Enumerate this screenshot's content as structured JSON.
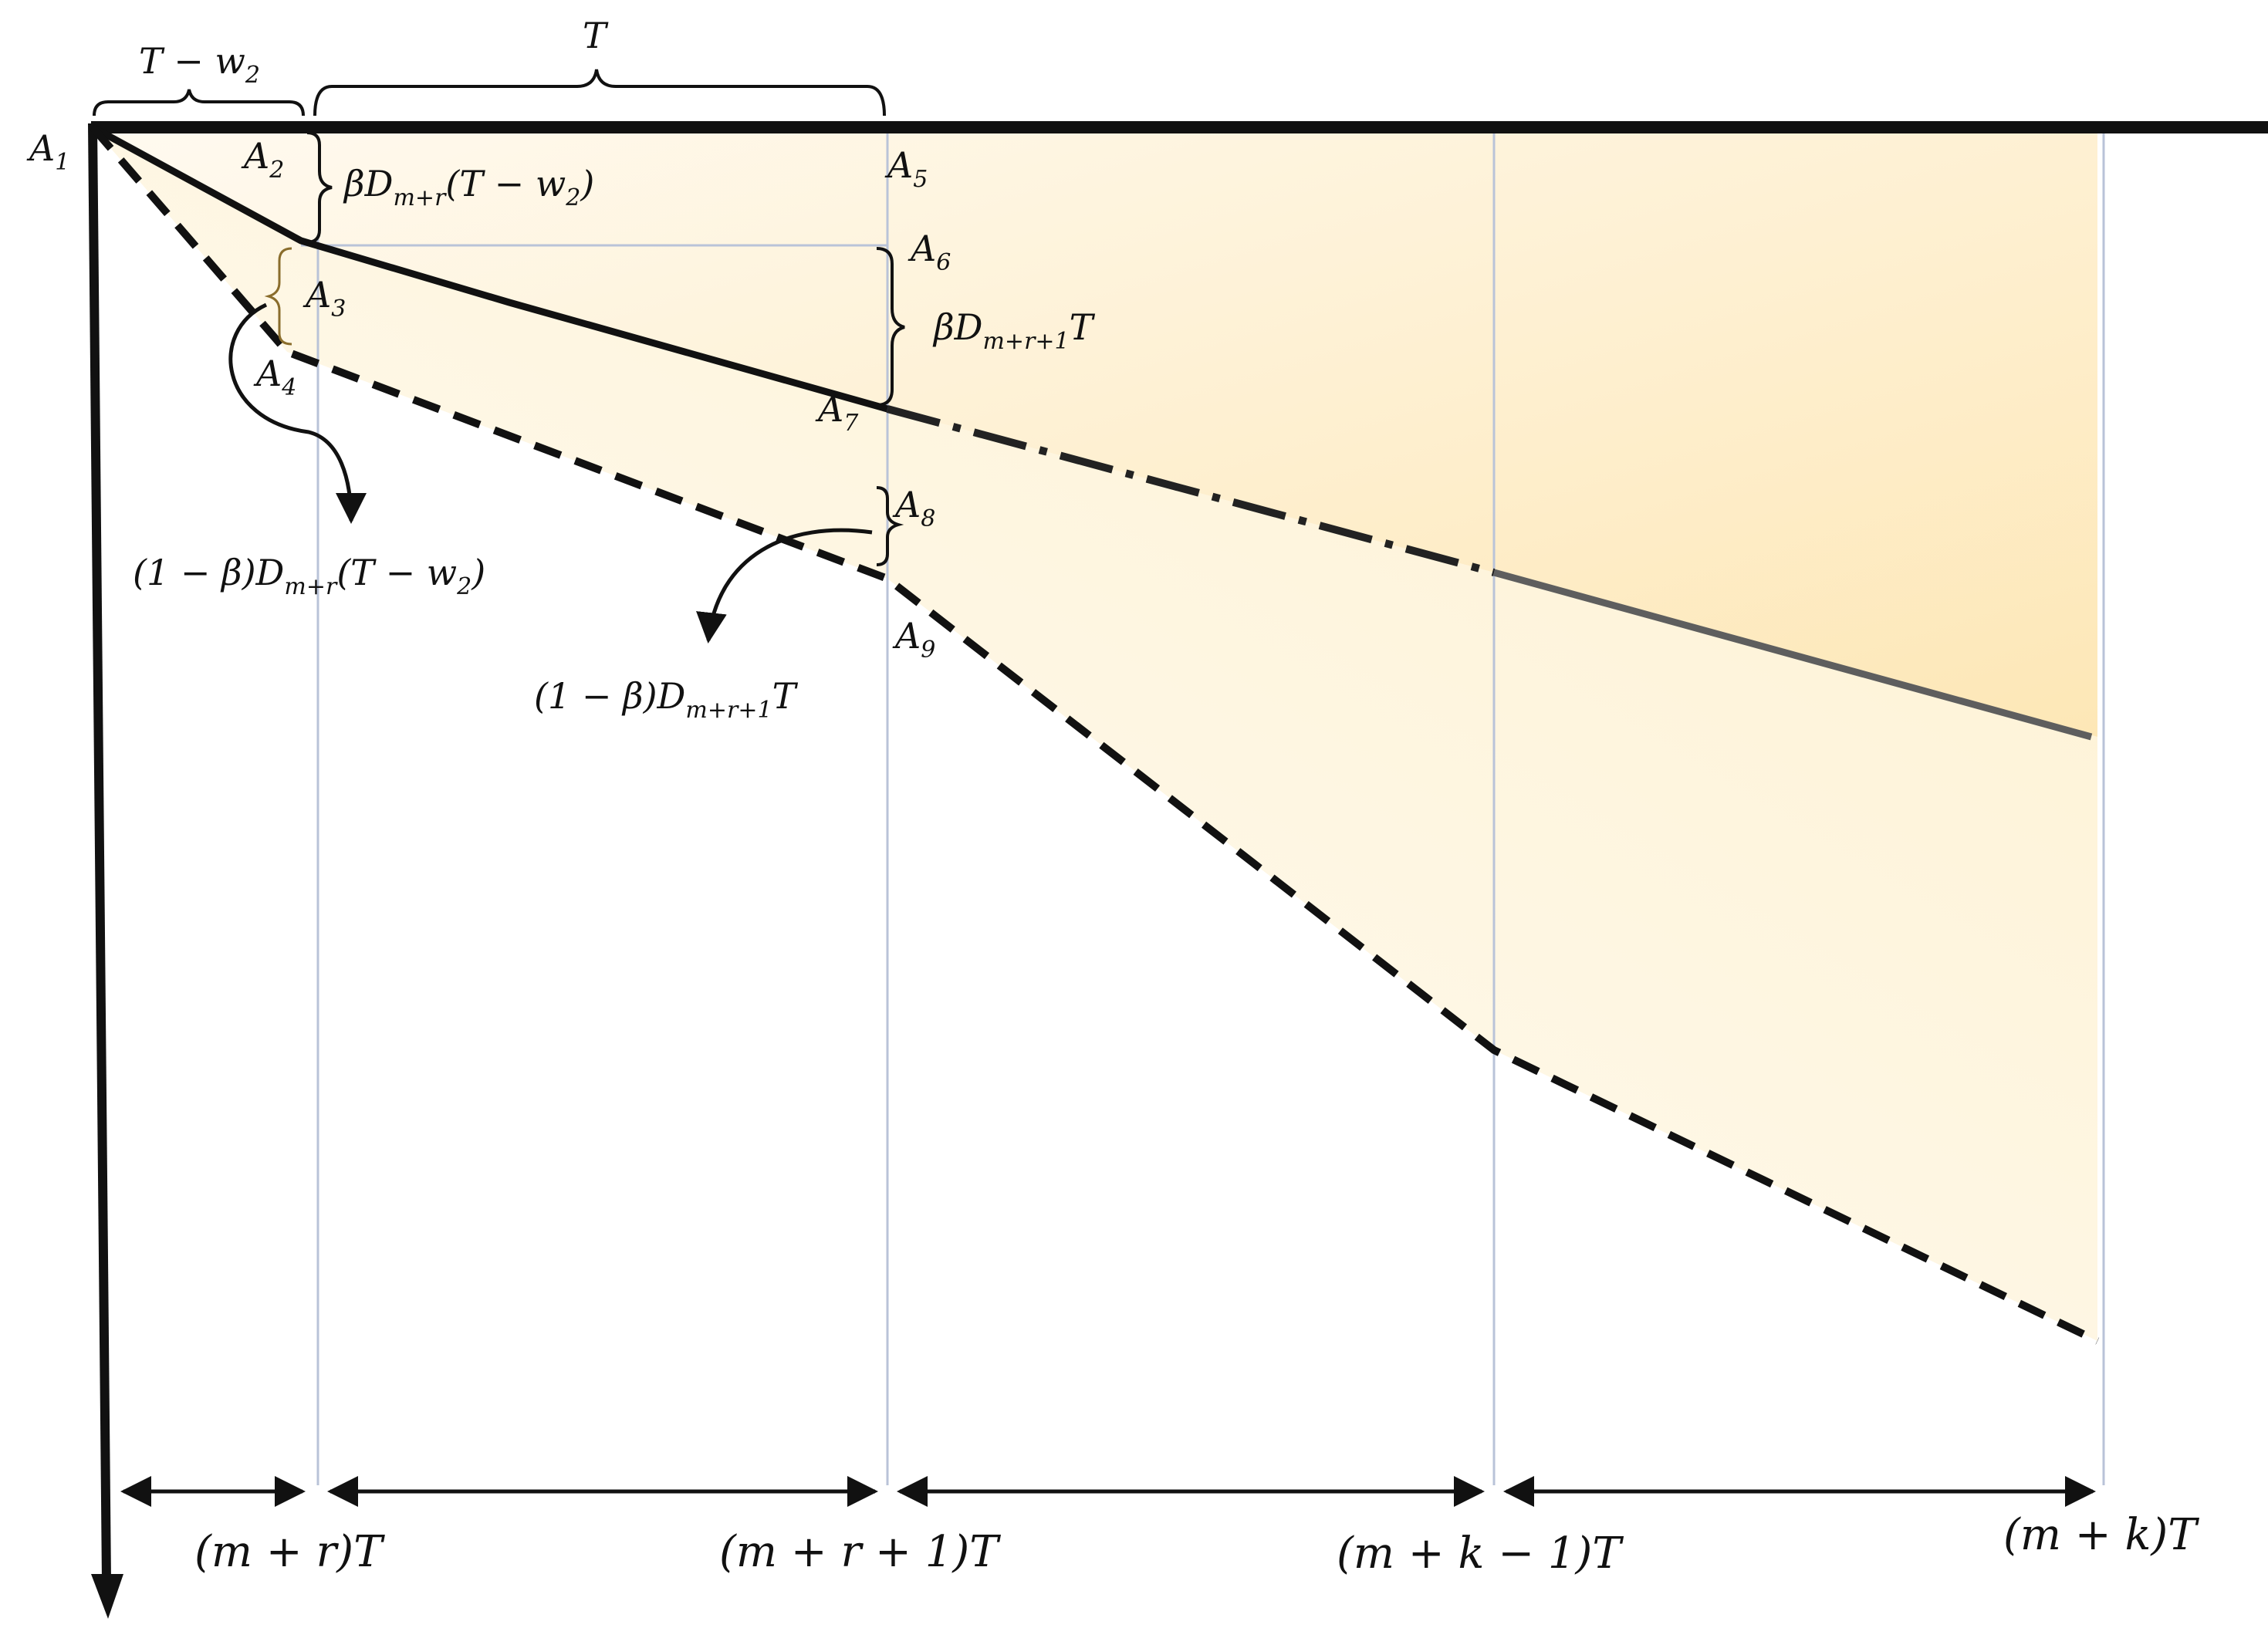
{
  "colors": {
    "fill_dark": "#fde7b6",
    "fill_light": "#fffaf0",
    "ink": "#111111",
    "guide": "#b9c3d8"
  },
  "points": {
    "A1": {
      "main": "A",
      "sub": "1"
    },
    "A2": {
      "main": "A",
      "sub": "2"
    },
    "A3": {
      "main": "A",
      "sub": "3"
    },
    "A4": {
      "main": "A",
      "sub": "4"
    },
    "A5": {
      "main": "A",
      "sub": "5"
    },
    "A6": {
      "main": "A",
      "sub": "6"
    },
    "A7": {
      "main": "A",
      "sub": "7"
    },
    "A8": {
      "main": "A",
      "sub": "8"
    },
    "A9": {
      "main": "A",
      "sub": "9"
    }
  },
  "top_braces": {
    "first": {
      "a": "T − w",
      "sub": "2"
    },
    "second": "T"
  },
  "annotations": {
    "beta_first": {
      "a": "βD",
      "s1": "m+r",
      "b": "(T − w",
      "s2": "2",
      "c": ")"
    },
    "beta_second": {
      "a": "βD",
      "s1": "m+r+1",
      "b": "T"
    },
    "one_minus_beta_first": {
      "a": "(1 − β)D",
      "s1": "m+r",
      "b": "(T − w",
      "s2": "2",
      "c": ")"
    },
    "one_minus_beta_second": {
      "a": "(1 − β)D",
      "s1": "m+r+1",
      "b": "T"
    }
  },
  "x_axis_labels": [
    "(m + r)T",
    "(m + r + 1)T",
    "(m + k − 1)T",
    "(m + k)T"
  ]
}
